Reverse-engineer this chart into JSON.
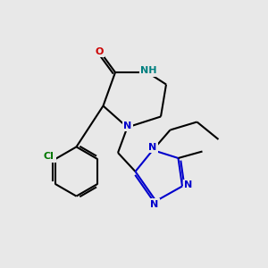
{
  "bg_color": "#e8e8e8",
  "bond_color": "#000000",
  "n_color": "#0000cc",
  "nh_color": "#008080",
  "o_color": "#cc0000",
  "cl_color": "#007700",
  "lw": 1.5,
  "fs": 8.0,
  "xlim": [
    0,
    10
  ],
  "ylim": [
    0,
    10
  ]
}
